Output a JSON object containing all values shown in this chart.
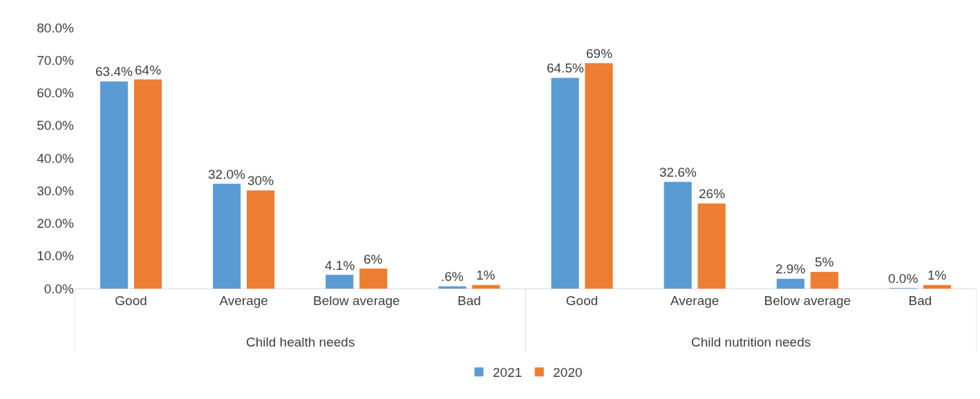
{
  "chart_data": {
    "type": "bar",
    "categories": [
      "Good",
      "Average",
      "Below average",
      "Bad",
      "Good",
      "Average",
      "Below average",
      "Bad"
    ],
    "annotations": [
      "Child health needs",
      "Child nutrition needs"
    ],
    "series": [
      {
        "name": "2021",
        "color": "#5b9bd5",
        "values": [
          63.4,
          32.0,
          4.1,
          0.6,
          64.5,
          32.6,
          2.9,
          0.0
        ],
        "value_labels": [
          "63.4%",
          "32.0%",
          "4.1%",
          ".6%",
          "64.5%",
          "32.6%",
          "2.9%",
          "0.0%"
        ]
      },
      {
        "name": "2020",
        "color": "#ed7d31",
        "values": [
          64,
          30,
          6,
          1,
          69,
          26,
          5,
          1
        ],
        "value_labels": [
          "64%",
          "30%",
          "6%",
          "1%",
          "69%",
          "26%",
          "5%",
          "1%"
        ]
      }
    ],
    "ylim": [
      0,
      80
    ],
    "yticks": [
      {
        "value": 0,
        "label": "0.0%"
      },
      {
        "value": 10,
        "label": "10.0%"
      },
      {
        "value": 20,
        "label": "20.0%"
      },
      {
        "value": 30,
        "label": "30.0%"
      },
      {
        "value": 40,
        "label": "40.0%"
      },
      {
        "value": 50,
        "label": "50.0%"
      },
      {
        "value": 60,
        "label": "60.0%"
      },
      {
        "value": 70,
        "label": "70.0%"
      },
      {
        "value": 80,
        "label": "80.0%"
      }
    ],
    "legend": "bottom"
  }
}
